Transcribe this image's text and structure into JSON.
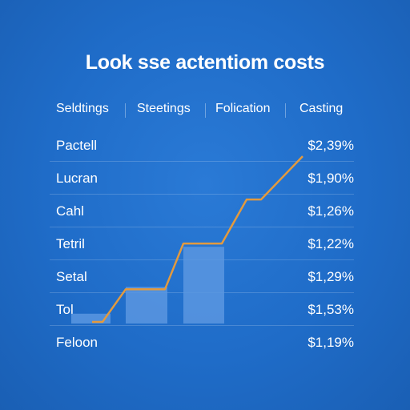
{
  "title": "Look sse actentiom costs",
  "columns": [
    "Seldtings",
    "Steetings",
    "Folication",
    "Casting"
  ],
  "colors": {
    "bar": "#5b97e0",
    "line": "#e39a3e",
    "background": "#1f6cc8"
  },
  "chart_data": {
    "type": "table",
    "title": "Look sse actentiom costs",
    "columns": [
      "Seldtings",
      "Steetings",
      "Folication",
      "Casting"
    ],
    "rows": [
      {
        "label": "Pactell",
        "value": "$2,39%"
      },
      {
        "label": "Lucran",
        "value": "$1,90%"
      },
      {
        "label": "Cahl",
        "value": "$1,26%"
      },
      {
        "label": "Tetril",
        "value": "$1,22%"
      },
      {
        "label": "Setal",
        "value": "$1,29%"
      },
      {
        "label": "Tol",
        "value": "$1,53%"
      },
      {
        "label": "Feloon",
        "value": "$1,19%"
      }
    ],
    "bars": [
      {
        "value": 0.12
      },
      {
        "value": 0.45
      },
      {
        "value": 0.94
      }
    ],
    "line": [
      0.02,
      0.02,
      0.42,
      0.42,
      0.98,
      0.98,
      1.52,
      1.52,
      2.05
    ],
    "ylim": [
      0,
      2.1
    ]
  }
}
